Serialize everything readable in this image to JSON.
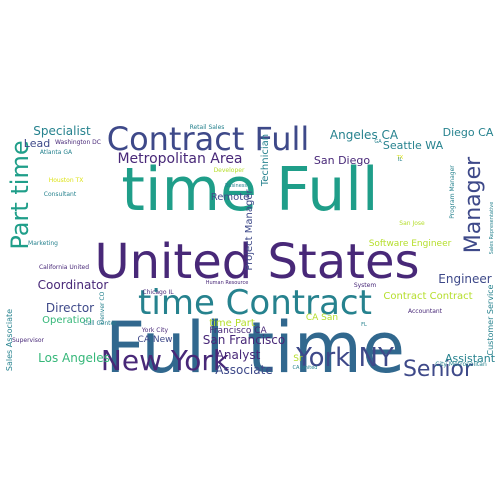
{
  "palette": {
    "background": "#ffffff",
    "navy": "#3b1c5c",
    "purple": "#482878",
    "indigo": "#3e4989",
    "blue": "#31688e",
    "teal": "#26828e",
    "cyan": "#1f9e89",
    "green": "#35b779",
    "lime": "#6ece58",
    "yellowgreen": "#b5de2b",
    "yellow": "#dde318"
  },
  "words": [
    {
      "text": "Full time",
      "color": "blue"
    },
    {
      "text": "time Full",
      "color": "cyan"
    },
    {
      "text": "United States",
      "color": "purple"
    },
    {
      "text": "time Contract",
      "color": "teal"
    },
    {
      "text": "Contract Full",
      "color": "indigo"
    },
    {
      "text": "New York",
      "color": "purple"
    },
    {
      "text": "York NY",
      "color": "indigo"
    },
    {
      "text": "Part time",
      "color": "cyan"
    },
    {
      "text": "Manager",
      "color": "indigo"
    },
    {
      "text": "Senior",
      "color": "indigo"
    },
    {
      "text": "Metropolitan Area",
      "color": "purple"
    },
    {
      "text": "Specialist",
      "color": "teal"
    },
    {
      "text": "Angeles CA",
      "color": "teal"
    },
    {
      "text": "Diego CA",
      "color": "teal"
    },
    {
      "text": "Los Angeles",
      "color": "green"
    },
    {
      "text": "San Francisco",
      "color": "purple"
    },
    {
      "text": "Coordinator",
      "color": "purple"
    },
    {
      "text": "Director",
      "color": "indigo"
    },
    {
      "text": "Engineer",
      "color": "indigo"
    },
    {
      "text": "Associate",
      "color": "indigo"
    },
    {
      "text": "Analyst",
      "color": "purple"
    },
    {
      "text": "Assistant",
      "color": "teal"
    },
    {
      "text": "Lead",
      "color": "indigo"
    },
    {
      "text": "Seattle WA",
      "color": "teal"
    },
    {
      "text": "San Diego",
      "color": "purple"
    },
    {
      "text": "Remote",
      "color": "indigo"
    },
    {
      "text": "Technician",
      "color": "teal"
    },
    {
      "text": "Project Manager",
      "color": "indigo"
    },
    {
      "text": "time Part",
      "color": "yellowgreen"
    },
    {
      "text": "Francisco CA",
      "color": "purple"
    },
    {
      "text": "Contract Contract",
      "color": "yellowgreen"
    },
    {
      "text": "Software Engineer",
      "color": "yellowgreen"
    },
    {
      "text": "Operation",
      "color": "green"
    },
    {
      "text": "Sr",
      "color": "yellowgreen"
    },
    {
      "text": "CA San",
      "color": "yellowgreen"
    },
    {
      "text": "CA New",
      "color": "indigo"
    },
    {
      "text": "Customer Service",
      "color": "teal"
    },
    {
      "text": "Sales Associate",
      "color": "teal"
    },
    {
      "text": "Retail Sales",
      "color": "teal"
    },
    {
      "text": "Washington DC",
      "color": "purple"
    },
    {
      "text": "Atlanta GA",
      "color": "teal"
    },
    {
      "text": "Consultant",
      "color": "teal"
    },
    {
      "text": "Marketing",
      "color": "teal"
    },
    {
      "text": "California United",
      "color": "purple"
    },
    {
      "text": "Call Center",
      "color": "teal"
    },
    {
      "text": "Chicago IL",
      "color": "purple"
    },
    {
      "text": "Denver CO",
      "color": "teal"
    },
    {
      "text": "York City",
      "color": "purple"
    },
    {
      "text": "Supervisor",
      "color": "purple"
    },
    {
      "text": "Human Resource",
      "color": "purple"
    },
    {
      "text": "System",
      "color": "purple"
    },
    {
      "text": "Developer",
      "color": "yellowgreen"
    },
    {
      "text": "Business",
      "color": "teal"
    },
    {
      "text": "San Jose",
      "color": "yellowgreen"
    },
    {
      "text": "Accountant",
      "color": "purple"
    },
    {
      "text": "Program Manager",
      "color": "teal"
    },
    {
      "text": "Sales Representative",
      "color": "teal"
    },
    {
      "text": "City Metropolitan",
      "color": "teal"
    },
    {
      "text": "CA United",
      "color": "teal"
    },
    {
      "text": "FL",
      "color": "teal"
    },
    {
      "text": "Houston TX",
      "color": "yellow"
    },
    {
      "text": "TX",
      "color": "yellow"
    },
    {
      "text": "IL",
      "color": "teal"
    },
    {
      "text": "GA",
      "color": "teal"
    }
  ]
}
